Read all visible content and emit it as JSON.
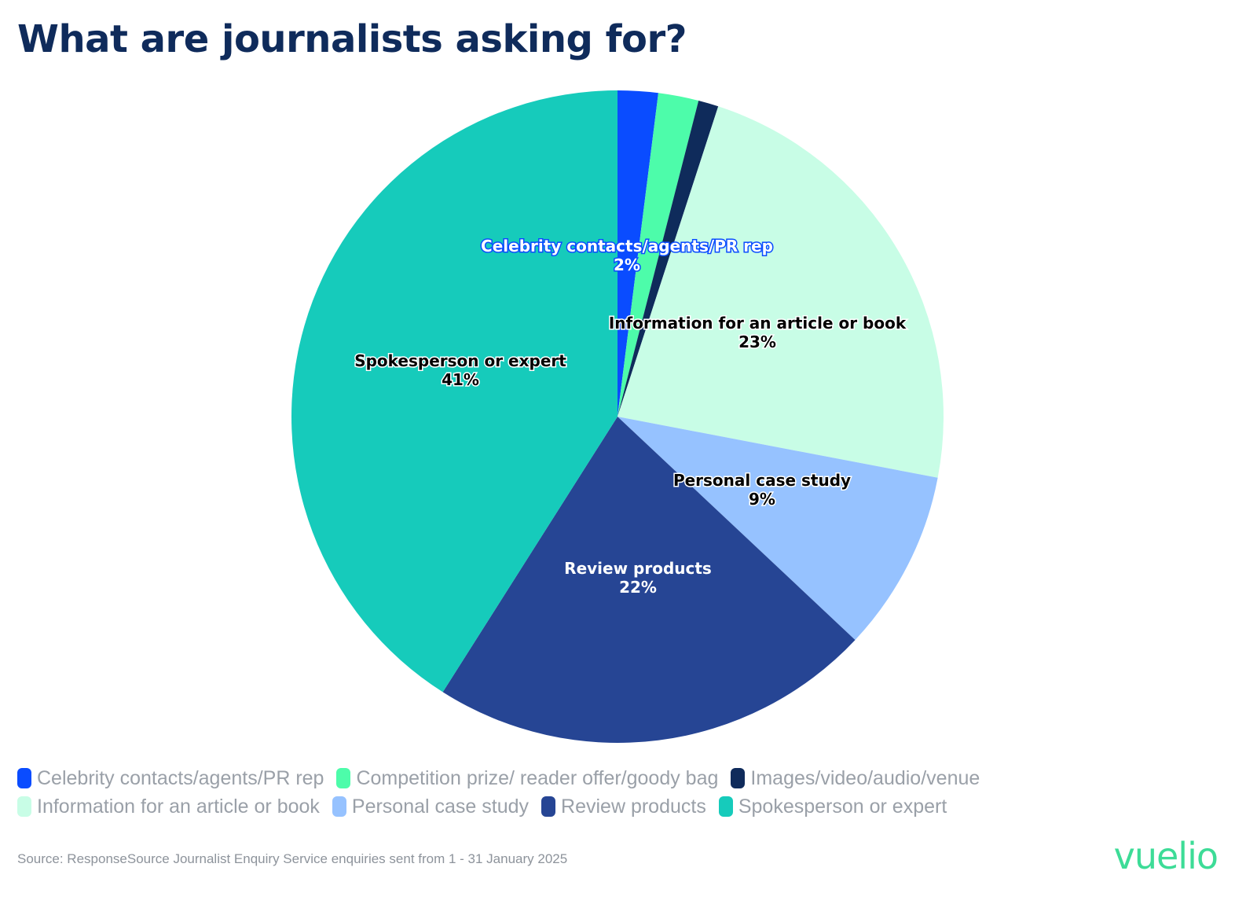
{
  "title": "What are journalists asking for?",
  "source": "Source: ResponseSource Journalist Enquiry Service enquiries sent from 1 - 31 January 2025",
  "logo": "vuelio",
  "chart_data": {
    "type": "pie",
    "title": "What are journalists asking for?",
    "legend_placement": "bottom",
    "slices": [
      {
        "name": "Celebrity contacts/agents/PR rep",
        "value": 2,
        "color": "#0a4cff",
        "label": "Celebrity contacts/agents/PR rep",
        "pct_label": "2%",
        "label_color": "#ffffff"
      },
      {
        "name": "Competition prize/ reader offer/goody bag",
        "value": 2,
        "color": "#4dfcaa",
        "label": "",
        "pct_label": "",
        "label_color": "#000000"
      },
      {
        "name": "Images/video/audio/venue",
        "value": 1,
        "color": "#0f2b5b",
        "label": "",
        "pct_label": "",
        "label_color": "#ffffff"
      },
      {
        "name": "Information for an article or book",
        "value": 23,
        "color": "#c8fde6",
        "label": "Information for an article or book",
        "pct_label": "23%",
        "label_color": "#000000"
      },
      {
        "name": "Personal case study",
        "value": 9,
        "color": "#96c2ff",
        "label": "Personal case study",
        "pct_label": "9%",
        "label_color": "#000000"
      },
      {
        "name": "Review products",
        "value": 22,
        "color": "#264594",
        "label": "Review products",
        "pct_label": "22%",
        "label_color": "#ffffff"
      },
      {
        "name": "Spokesperson or expert",
        "value": 41,
        "color": "#16cbbb",
        "label": "Spokesperson or expert",
        "pct_label": "41%",
        "label_color": "#000000"
      }
    ]
  }
}
